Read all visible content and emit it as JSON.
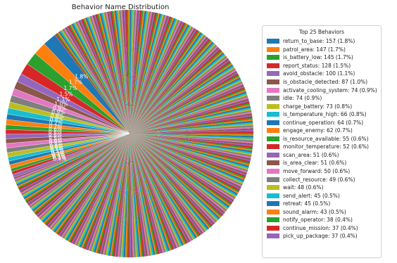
{
  "chart_data": {
    "type": "pie",
    "title": "Behavior Name Distribution",
    "legend_title": "Top 25 Behaviors",
    "legend_position": "right",
    "colors": [
      "#1f77b4",
      "#ff7f0e",
      "#2ca02c",
      "#d62728",
      "#9467bd",
      "#8c564b",
      "#e377c2",
      "#7f7f7f",
      "#bcbd22",
      "#17becf"
    ],
    "slices": [
      {
        "name": "return_to_base",
        "count": 157,
        "percent": 1.8,
        "label": "return_to_base: 157 (1.8%)",
        "wedge_label": "1.8%"
      },
      {
        "name": "patrol_area",
        "count": 147,
        "percent": 1.7,
        "label": "patrol_area: 147 (1.7%)",
        "wedge_label": "1.7%"
      },
      {
        "name": "is_battery_low",
        "count": 145,
        "percent": 1.7,
        "label": "is_battery_low: 145 (1.7%)",
        "wedge_label": "1.7%"
      },
      {
        "name": "report_status",
        "count": 128,
        "percent": 1.5,
        "label": "report_status: 128 (1.5%)",
        "wedge_label": "1.5%"
      },
      {
        "name": "avoid_obstacle",
        "count": 100,
        "percent": 1.1,
        "label": "avoid_obstacle: 100 (1.1%)",
        "wedge_label": "1.1%"
      },
      {
        "name": "is_obstacle_detected",
        "count": 87,
        "percent": 1.0,
        "label": "is_obstacle_detected: 87 (1.0%)",
        "wedge_label": "1.0%"
      },
      {
        "name": "activate_cooling_system",
        "count": 74,
        "percent": 0.9,
        "label": "activate_cooling_system: 74 (0.9%)",
        "wedge_label": "0.9%"
      },
      {
        "name": "idle",
        "count": 74,
        "percent": 0.9,
        "label": "idle: 74 (0.9%)",
        "wedge_label": "0.9%"
      },
      {
        "name": "charge_battery",
        "count": 73,
        "percent": 0.8,
        "label": "charge_battery: 73 (0.8%)",
        "wedge_label": "0.8%"
      },
      {
        "name": "is_temperature_high",
        "count": 66,
        "percent": 0.8,
        "label": "is_temperature_high: 66 (0.8%)",
        "wedge_label": "0.8%"
      },
      {
        "name": "continue_operation",
        "count": 64,
        "percent": 0.7,
        "label": "continue_operation: 64 (0.7%)",
        "wedge_label": "0.7%"
      },
      {
        "name": "engage_enemy",
        "count": 62,
        "percent": 0.7,
        "label": "engage_enemy: 62 (0.7%)",
        "wedge_label": "0.7%"
      },
      {
        "name": "is_resource_available",
        "count": 55,
        "percent": 0.6,
        "label": "is_resource_available: 55 (0.6%)",
        "wedge_label": "0.6%"
      },
      {
        "name": "monitor_temperature",
        "count": 52,
        "percent": 0.6,
        "label": "monitor_temperature: 52 (0.6%)",
        "wedge_label": "0.6%"
      },
      {
        "name": "scan_area",
        "count": 51,
        "percent": 0.6,
        "label": "scan_area: 51 (0.6%)",
        "wedge_label": "0.6%"
      },
      {
        "name": "is_area_clear",
        "count": 51,
        "percent": 0.6,
        "label": "is_area_clear: 51 (0.6%)",
        "wedge_label": "0.6%"
      },
      {
        "name": "move_forward",
        "count": 50,
        "percent": 0.6,
        "label": "move_forward: 50 (0.6%)",
        "wedge_label": "0.6%"
      },
      {
        "name": "collect_resource",
        "count": 49,
        "percent": 0.6,
        "label": "collect_resource: 49 (0.6%)",
        "wedge_label": "0.6%"
      },
      {
        "name": "wait",
        "count": 48,
        "percent": 0.6,
        "label": "wait: 48 (0.6%)",
        "wedge_label": "0.6%"
      },
      {
        "name": "send_alert",
        "count": 45,
        "percent": 0.5,
        "label": "send_alert: 45 (0.5%)",
        "wedge_label": "0.5%"
      },
      {
        "name": "retreat",
        "count": 45,
        "percent": 0.5,
        "label": "retreat: 45 (0.5%)",
        "wedge_label": "0.5%"
      },
      {
        "name": "sound_alarm",
        "count": 43,
        "percent": 0.5,
        "label": "sound_alarm: 43 (0.5%)",
        "wedge_label": "0.5%"
      },
      {
        "name": "notify_operator",
        "count": 38,
        "percent": 0.4,
        "label": "notify_operator: 38 (0.4%)",
        "wedge_label": "0.4%"
      },
      {
        "name": "continue_mission",
        "count": 37,
        "percent": 0.4,
        "label": "continue_mission: 37 (0.4%)",
        "wedge_label": "0.4%"
      },
      {
        "name": "pick_up_package",
        "count": 37,
        "percent": 0.4,
        "label": "pick_up_package: 37 (0.4%)",
        "wedge_label": "0.4%"
      }
    ]
  }
}
